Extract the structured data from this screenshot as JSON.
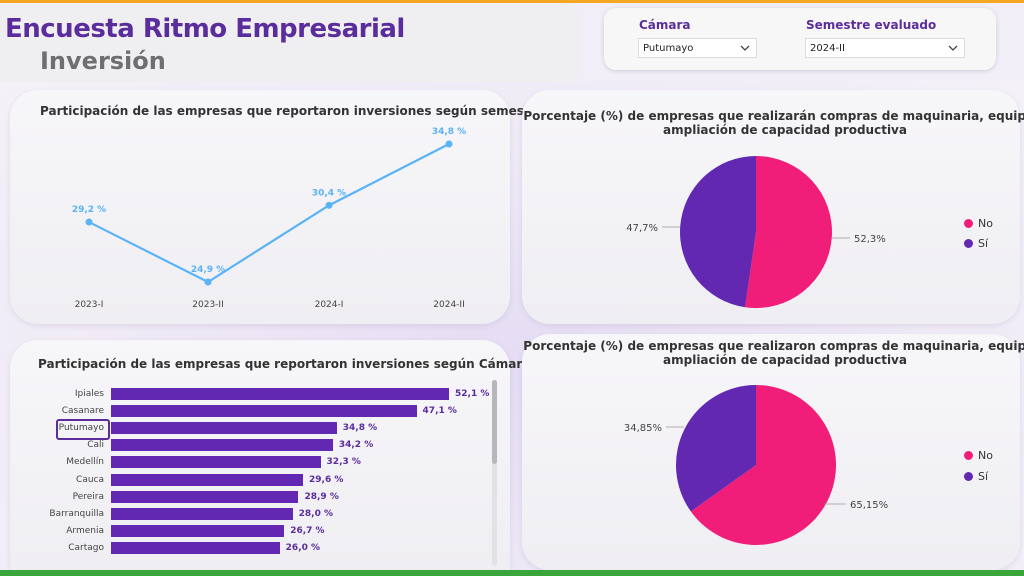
{
  "header": {
    "title": "Encuesta Ritmo Empresarial",
    "subtitle": "Inversión"
  },
  "filters": {
    "camara": {
      "label": "Cámara",
      "value": "Putumayo"
    },
    "semestre": {
      "label": "Semestre evaluado",
      "value": "2024-II"
    }
  },
  "line_card": {
    "title": "Participación de las empresas que reportaron inversiones según semestre",
    "chart_data": {
      "type": "line",
      "categories": [
        "2023-I",
        "2023-II",
        "2024-I",
        "2024-II"
      ],
      "values": [
        29.2,
        24.9,
        30.4,
        34.8
      ],
      "labels": [
        "29,2 %",
        "24,9 %",
        "30,4 %",
        "34,8 %"
      ],
      "color": "#5ab3f5"
    }
  },
  "bar_card": {
    "title": "Participación de las empresas que reportaron inversiones según Cámara",
    "highlighted": "Putumayo",
    "chart_data": {
      "type": "bar",
      "categories": [
        "Ipiales",
        "Casanare",
        "Putumayo",
        "Cali",
        "Medellín",
        "Cauca",
        "Pereira",
        "Barranquilla",
        "Armenia",
        "Cartago"
      ],
      "values": [
        52.1,
        47.1,
        34.8,
        34.2,
        32.3,
        29.6,
        28.9,
        28.0,
        26.7,
        26.0
      ],
      "labels": [
        "52,1 %",
        "47,1 %",
        "34,8 %",
        "34,2 %",
        "32,3 %",
        "29,6 %",
        "28,9 %",
        "28,0 %",
        "26,7 %",
        "26,0 %"
      ],
      "color": "#6228b2"
    }
  },
  "pie_top": {
    "title_line1": "Porcentaje (%) de empresas que realizarán compras de maquinaria, equipo o",
    "title_line2": "ampliación de capacidad productiva",
    "chart_data": {
      "type": "pie",
      "categories": [
        "No",
        "Sí"
      ],
      "values": [
        52.3,
        47.7
      ],
      "labels": [
        "52,3%",
        "47,7%"
      ],
      "colors": [
        "#f01e79",
        "#6228b2"
      ]
    }
  },
  "pie_bottom": {
    "title_line1": "Porcentaje (%) de empresas que realizaron compras de maquinaria, equipo o",
    "title_line2": "ampliación de capacidad productiva",
    "chart_data": {
      "type": "pie",
      "categories": [
        "No",
        "Sí"
      ],
      "values": [
        65.15,
        34.85
      ],
      "labels": [
        "65,15%",
        "34,85%"
      ],
      "colors": [
        "#f01e79",
        "#6228b2"
      ]
    }
  },
  "legend": {
    "no": "No",
    "si": "Sí"
  }
}
